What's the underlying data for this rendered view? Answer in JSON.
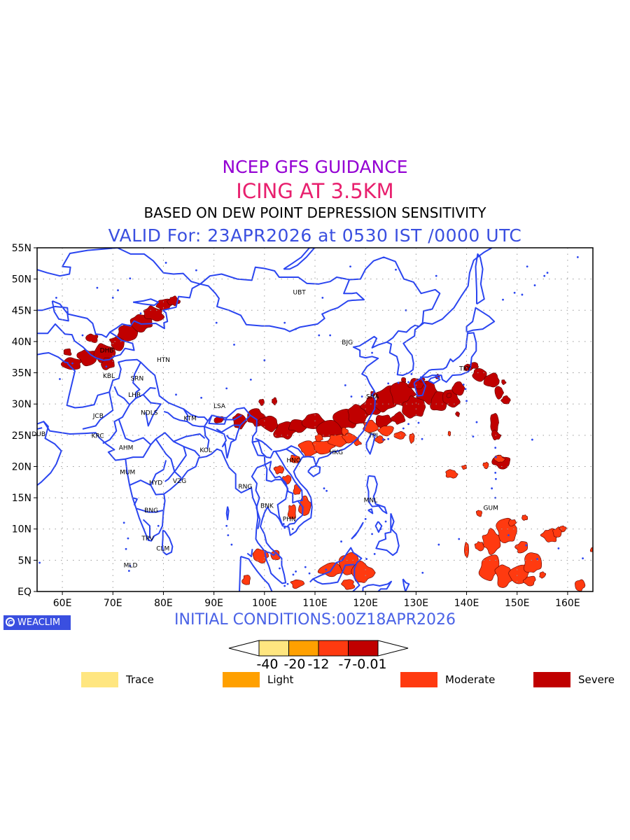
{
  "titles": {
    "line1": "NCEP GFS GUIDANCE",
    "line2": "ICING AT 3.5KM",
    "line3": "BASED ON DEW POINT DEPRESSION SENSITIVITY",
    "line4": "VALID For: 23APR2026 at 0530 IST /0000 UTC",
    "initial": "INITIAL CONDITIONS:00Z18APR2026"
  },
  "logo": {
    "text": "WEACLIM",
    "icon": "weaclim-logo-icon"
  },
  "map": {
    "lon_range": [
      55,
      165
    ],
    "lat_range": [
      0,
      55
    ],
    "lat_labels": [
      "55N",
      "50N",
      "45N",
      "40N",
      "35N",
      "30N",
      "25N",
      "20N",
      "15N",
      "10N",
      "5N",
      "EQ"
    ],
    "lon_labels": [
      "60E",
      "70E",
      "80E",
      "90E",
      "100E",
      "110E",
      "120E",
      "130E",
      "140E",
      "150E",
      "160E"
    ],
    "coast_color": "#2a45f0",
    "grid": "dotted",
    "stations": [
      {
        "code": "UBT",
        "lon": 106.9,
        "lat": 47.9
      },
      {
        "code": "BJG",
        "lon": 116.4,
        "lat": 39.9
      },
      {
        "code": "HTN",
        "lon": 80.0,
        "lat": 37.1
      },
      {
        "code": "DHB",
        "lon": 68.8,
        "lat": 38.6
      },
      {
        "code": "KBL",
        "lon": 69.2,
        "lat": 34.5
      },
      {
        "code": "SRN",
        "lon": 74.8,
        "lat": 34.1
      },
      {
        "code": "LHR",
        "lon": 74.3,
        "lat": 31.5
      },
      {
        "code": "LSA",
        "lon": 91.1,
        "lat": 29.7
      },
      {
        "code": "JCB",
        "lon": 67.1,
        "lat": 28.1
      },
      {
        "code": "NDLS",
        "lon": 77.2,
        "lat": 28.6
      },
      {
        "code": "KTM",
        "lon": 85.3,
        "lat": 27.7
      },
      {
        "code": "SHA",
        "lon": 121.4,
        "lat": 31.2
      },
      {
        "code": "TKY",
        "lon": 139.7,
        "lat": 35.7
      },
      {
        "code": "DUB",
        "lon": 55.3,
        "lat": 25.2
      },
      {
        "code": "KRC",
        "lon": 67.0,
        "lat": 24.9
      },
      {
        "code": "AHM",
        "lon": 72.6,
        "lat": 23.0
      },
      {
        "code": "KOL",
        "lon": 88.4,
        "lat": 22.6
      },
      {
        "code": "TPI",
        "lon": 121.5,
        "lat": 25.0
      },
      {
        "code": "HKG",
        "lon": 114.2,
        "lat": 22.3
      },
      {
        "code": "HNO",
        "lon": 105.8,
        "lat": 21.0
      },
      {
        "code": "MUM",
        "lon": 72.9,
        "lat": 19.1
      },
      {
        "code": "HYD",
        "lon": 78.5,
        "lat": 17.4
      },
      {
        "code": "VZG",
        "lon": 83.2,
        "lat": 17.7
      },
      {
        "code": "RNG",
        "lon": 96.2,
        "lat": 16.8
      },
      {
        "code": "MNL",
        "lon": 121.0,
        "lat": 14.6
      },
      {
        "code": "GUM",
        "lon": 144.8,
        "lat": 13.4
      },
      {
        "code": "BNK",
        "lon": 100.5,
        "lat": 13.7
      },
      {
        "code": "PHN",
        "lon": 104.9,
        "lat": 11.6
      },
      {
        "code": "BNG",
        "lon": 77.6,
        "lat": 13.0
      },
      {
        "code": "TRV",
        "lon": 76.9,
        "lat": 8.5
      },
      {
        "code": "CLM",
        "lon": 79.9,
        "lat": 6.9
      },
      {
        "code": "MLD",
        "lon": 73.5,
        "lat": 4.2
      }
    ]
  },
  "icing_colors": {
    "trace": "#ffe680",
    "light": "#ffa000",
    "moderate": "#ff3a10",
    "severe": "#c00000"
  },
  "colorbar": {
    "labels": [
      "-40",
      "-20",
      "-12",
      "-7",
      "-0.01"
    ],
    "colors": [
      "#ffe680",
      "#ffa000",
      "#ff3a10",
      "#c00000"
    ]
  },
  "legend": [
    {
      "label": "Trace",
      "color": "#ffe680"
    },
    {
      "label": "Light",
      "color": "#ffa000"
    },
    {
      "label": "Moderate",
      "color": "#ff3a10"
    },
    {
      "label": "Severe",
      "color": "#c00000"
    }
  ]
}
